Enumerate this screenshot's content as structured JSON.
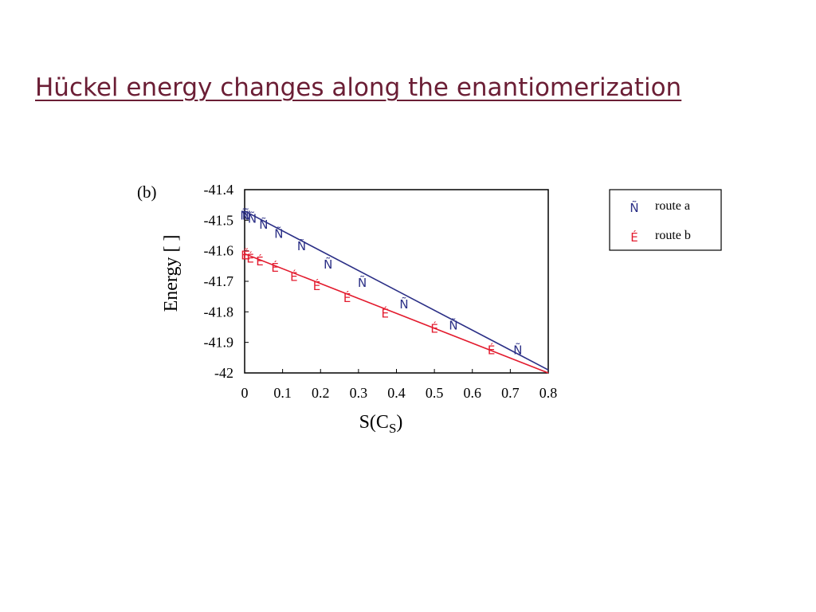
{
  "slide": {
    "title": "Hückel energy changes along the enantiomerization"
  },
  "chart_data": {
    "type": "scatter",
    "panel_label": "(b)",
    "xlabel": "S(C",
    "xlabel_sub": "S",
    "xlabel_close": ")",
    "ylabel": "Energy [  ]",
    "xlim": [
      0,
      0.8
    ],
    "ylim": [
      -42,
      -41.4
    ],
    "xticks": [
      0,
      0.1,
      0.2,
      0.3,
      0.4,
      0.5,
      0.6,
      0.7,
      0.8
    ],
    "xtick_labels": [
      "0",
      "0.1",
      "0.2",
      "0.3",
      "0.4",
      "0.5",
      "0.6",
      "0.7",
      "0.8"
    ],
    "yticks": [
      -41.4,
      -41.5,
      -41.6,
      -41.7,
      -41.8,
      -41.9,
      -42
    ],
    "ytick_labels": [
      "-41.4",
      "-41.5",
      "-41.6",
      "-41.7",
      "-41.8",
      "-41.9",
      "-42"
    ],
    "grid": false,
    "legend_position": "outside-right",
    "series": [
      {
        "name": "route a",
        "marker": "Ñ",
        "color": "#2b2f86",
        "points": [
          [
            0.0,
            -41.48
          ],
          [
            0.005,
            -41.48
          ],
          [
            0.02,
            -41.49
          ],
          [
            0.05,
            -41.51
          ],
          [
            0.09,
            -41.54
          ],
          [
            0.15,
            -41.58
          ],
          [
            0.22,
            -41.64
          ],
          [
            0.31,
            -41.7
          ],
          [
            0.42,
            -41.77
          ],
          [
            0.55,
            -41.84
          ],
          [
            0.72,
            -41.92
          ]
        ],
        "fit": [
          [
            0.0,
            -41.47
          ],
          [
            0.8,
            -41.99
          ]
        ]
      },
      {
        "name": "route b",
        "marker": "É",
        "color": "#e31b2e",
        "points": [
          [
            0.0,
            -41.61
          ],
          [
            0.005,
            -41.61
          ],
          [
            0.015,
            -41.62
          ],
          [
            0.04,
            -41.63
          ],
          [
            0.08,
            -41.65
          ],
          [
            0.13,
            -41.68
          ],
          [
            0.19,
            -41.71
          ],
          [
            0.27,
            -41.75
          ],
          [
            0.37,
            -41.8
          ],
          [
            0.5,
            -41.85
          ],
          [
            0.65,
            -41.92
          ]
        ],
        "fit": [
          [
            0.0,
            -41.61
          ],
          [
            0.8,
            -42.0
          ]
        ]
      }
    ]
  }
}
